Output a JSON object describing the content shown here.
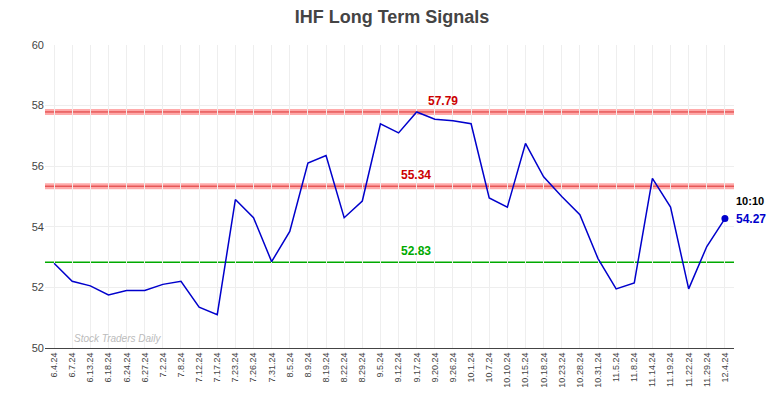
{
  "chart_data": {
    "type": "line",
    "title": "IHF Long Term Signals",
    "categories": [
      "6.4.24",
      "6.7.24",
      "6.13.24",
      "6.18.24",
      "6.24.24",
      "6.27.24",
      "7.2.24",
      "7.8.24",
      "7.12.24",
      "7.17.24",
      "7.23.24",
      "7.26.24",
      "7.31.24",
      "8.5.24",
      "8.9.24",
      "8.19.24",
      "8.22.24",
      "8.29.24",
      "9.5.24",
      "9.12.24",
      "9.17.24",
      "9.20.24",
      "9.26.24",
      "10.1.24",
      "10.7.24",
      "10.10.24",
      "10.15.24",
      "10.18.24",
      "10.23.24",
      "10.28.24",
      "10.31.24",
      "11.5.24",
      "11.8.24",
      "11.14.24",
      "11.19.24",
      "11.22.24",
      "11.29.24",
      "12.4.24"
    ],
    "values": [
      52.8,
      52.2,
      52.05,
      51.75,
      51.9,
      51.9,
      52.1,
      52.2,
      51.35,
      51.1,
      54.9,
      54.3,
      52.85,
      53.85,
      56.1,
      56.35,
      54.3,
      54.85,
      57.4,
      57.1,
      57.79,
      57.55,
      57.5,
      57.4,
      54.95,
      54.65,
      56.75,
      55.65,
      55.0,
      54.4,
      52.95,
      51.95,
      52.15,
      55.6,
      54.65,
      51.95,
      53.35,
      54.27
    ],
    "color": "#0000cc",
    "ylim": [
      50,
      60
    ],
    "yticks": [
      50,
      52,
      54,
      56,
      58,
      60
    ],
    "grid": true,
    "hlines": [
      {
        "value": 57.79,
        "label": "57.79",
        "color": "#cc0000",
        "band_color": "#ffaaaa"
      },
      {
        "value": 55.34,
        "label": "55.34",
        "color": "#cc0000",
        "band_color": "#ffaaaa"
      },
      {
        "value": 52.83,
        "label": "52.83",
        "color": "#00aa00"
      }
    ],
    "annotations": [
      {
        "text": "10:10",
        "color": "#000000"
      },
      {
        "text": "54.27",
        "color": "#0000cc"
      },
      {
        "text": "Stock Traders Daily",
        "color": "#bbbbbb"
      }
    ]
  }
}
